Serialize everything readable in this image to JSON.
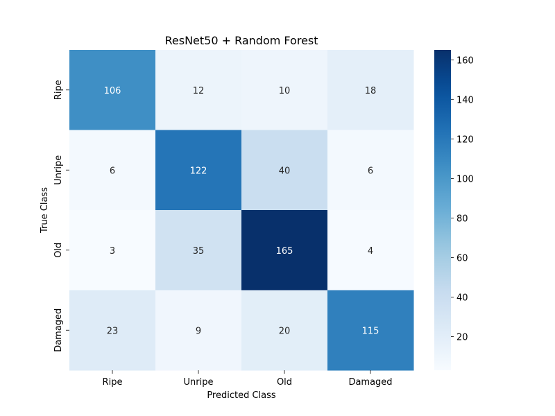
{
  "chart_data": {
    "type": "heatmap",
    "title": "ResNet50 + Random Forest",
    "xlabel": "Predicted Class",
    "ylabel": "True Class",
    "x_categories": [
      "Ripe",
      "Unripe",
      "Old",
      "Damaged"
    ],
    "y_categories": [
      "Ripe",
      "Unripe",
      "Old",
      "Damaged"
    ],
    "values": [
      [
        106,
        12,
        10,
        18
      ],
      [
        6,
        122,
        40,
        6
      ],
      [
        3,
        35,
        165,
        4
      ],
      [
        23,
        9,
        20,
        115
      ]
    ],
    "colormap": "Blues",
    "colorbar": {
      "min": 3,
      "max": 165,
      "ticks": [
        "20",
        "40",
        "60",
        "80",
        "100",
        "120",
        "140",
        "160"
      ]
    },
    "colors": {
      "low": "#f7fbff",
      "high": "#08306b",
      "annotation_dark": "#262626",
      "annotation_light": "#ffffff"
    }
  }
}
